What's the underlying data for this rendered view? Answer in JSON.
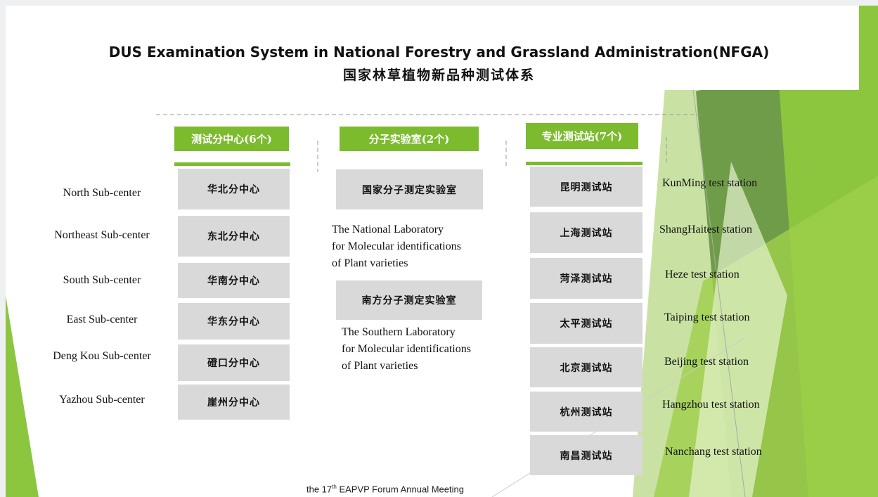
{
  "header": {
    "title": "DUS Examination System in National Forestry and Grassland Administration(NFGA)",
    "subtitle": "国家林草植物新品种测试体系"
  },
  "columns": [
    {
      "heading": "测试分中心(6个)",
      "items": [
        {
          "label": "华北分中心",
          "english": "North Sub-center"
        },
        {
          "label": "东北分中心",
          "english": "Northeast Sub-center"
        },
        {
          "label": "华南分中心",
          "english": "South Sub-center"
        },
        {
          "label": "华东分中心",
          "english": "East Sub-center"
        },
        {
          "label": "磴口分中心",
          "english": "Deng Kou Sub-center"
        },
        {
          "label": "崖州分中心",
          "english": "Yazhou  Sub-center"
        }
      ]
    },
    {
      "heading": "分子实验室(2个)",
      "items": [
        {
          "label": "国家分子测定实验室",
          "english": [
            "The National Laboratory",
            "for Molecular identifications",
            "of  Plant varieties"
          ]
        },
        {
          "label": "南方分子测定实验室",
          "english": [
            "The Southern Laboratory",
            "for Molecular identifications",
            "of  Plant varieties"
          ]
        }
      ]
    },
    {
      "heading": "专业测试站(7个)",
      "items": [
        {
          "label": "昆明测试站",
          "english": "KunMing test station"
        },
        {
          "label": "上海测试站",
          "english": "ShangHaitest station"
        },
        {
          "label": "菏泽测试站",
          "english": "Heze test station"
        },
        {
          "label": "太平测试站",
          "english": "Taiping test station"
        },
        {
          "label": "北京测试站",
          "english": "Beijing test station"
        },
        {
          "label": "杭州测试站",
          "english": "Hangzhou test station"
        },
        {
          "label": "南昌测试站",
          "english": "Nanchang test station"
        }
      ]
    }
  ],
  "footer": {
    "before": "the 17",
    "sup": "th",
    "after": " EAPVP Forum Annual Meeting"
  }
}
